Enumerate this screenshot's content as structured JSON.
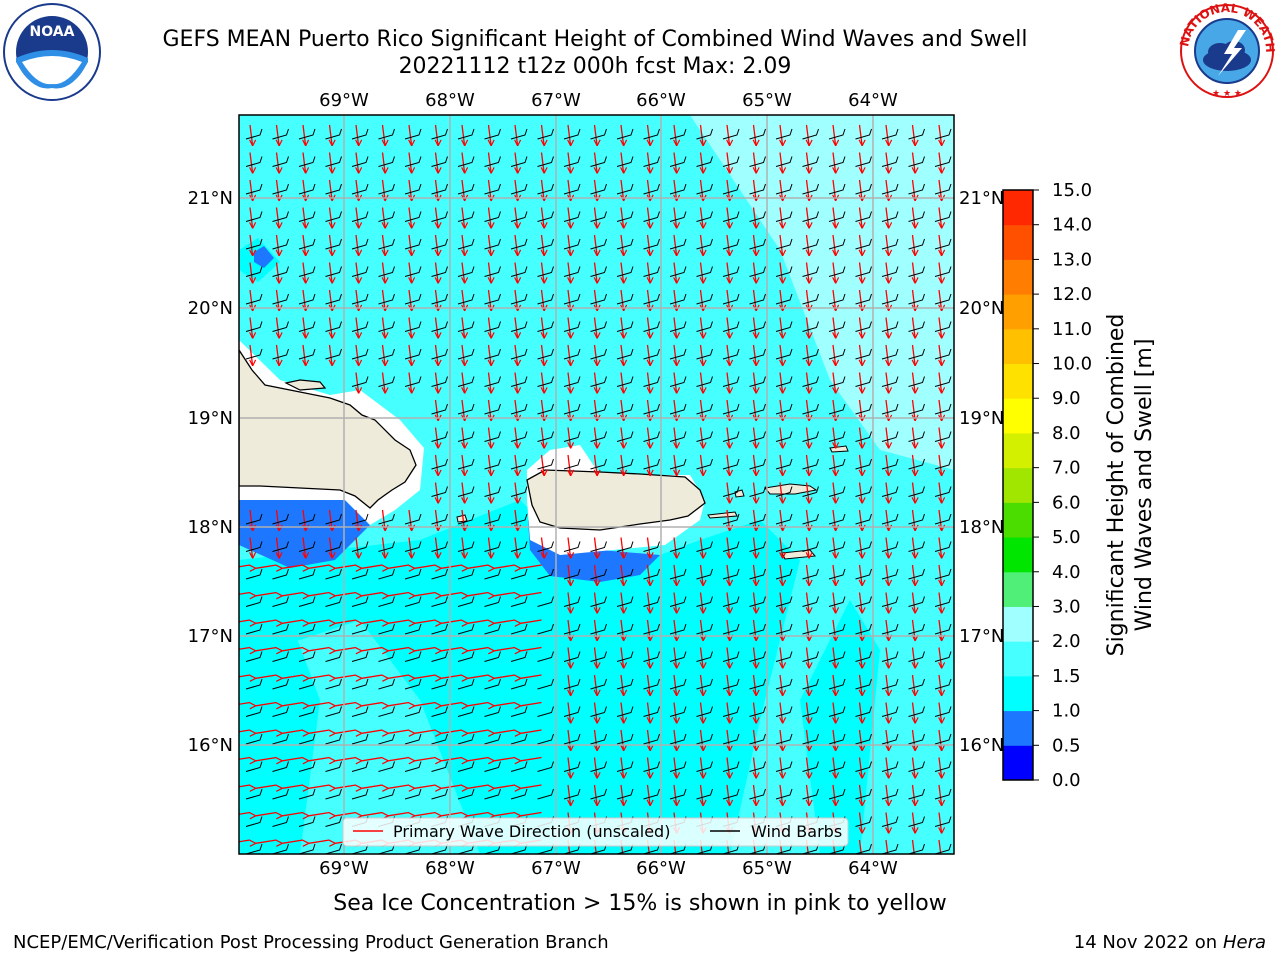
{
  "title_line1": "GEFS MEAN Puerto Rico Significant Height of Combined Wind Waves and Swell",
  "title_line2": "20221112 t12z 000h fcst   Max: 2.09",
  "logos": {
    "left": "noaa-logo",
    "right": "nws-logo",
    "left_text": "NOAA",
    "right_text": "NATIONAL WEATHER SERVICE"
  },
  "map": {
    "lon_labels": [
      "69°W",
      "68°W",
      "67°W",
      "66°W",
      "65°W",
      "64°W"
    ],
    "lat_labels": [
      "21°N",
      "20°N",
      "19°N",
      "18°N",
      "17°N",
      "16°N"
    ],
    "legend": {
      "waves": "Primary Wave Direction (unscaled)",
      "barbs": "Wind Barbs"
    }
  },
  "colorbar": {
    "label_line1": "Significant Height of Combined",
    "label_line2": "Wind Waves and Swell [m]",
    "ticks": [
      "0.0",
      "0.5",
      "1.0",
      "1.5",
      "2.0",
      "3.0",
      "4.0",
      "5.0",
      "6.0",
      "7.0",
      "8.0",
      "9.0",
      "10.0",
      "11.0",
      "12.0",
      "13.0",
      "14.0",
      "15.0"
    ],
    "colors": [
      "#0000ff",
      "#1e78ff",
      "#00ffff",
      "#46ffff",
      "#a0ffff",
      "#50f078",
      "#00e600",
      "#4bdc00",
      "#a0e600",
      "#d2f000",
      "#ffff00",
      "#ffe100",
      "#ffc000",
      "#ffa000",
      "#ff7d00",
      "#ff5000",
      "#ff2800"
    ]
  },
  "caption": "Sea Ice Concentration > 15% is shown in pink to yellow",
  "footer_left": "NCEP/EMC/Verification Post Processing Product Generation Branch",
  "footer_right_prefix": "14 Nov 2022 on",
  "footer_right_host": "Hera"
}
